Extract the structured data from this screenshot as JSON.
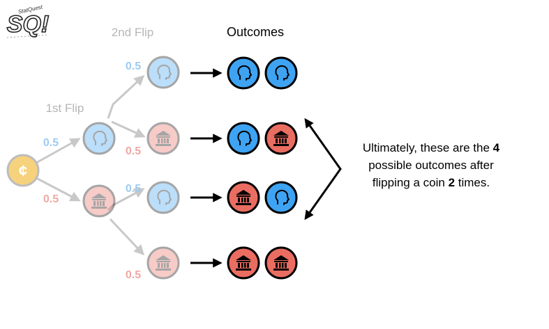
{
  "logo": {
    "text": "SQ!",
    "tagline": "StatQuest"
  },
  "labels": {
    "first_flip": "1st Flip",
    "second_flip": "2nd Flip",
    "outcomes": "Outcomes"
  },
  "probabilities": {
    "first_heads": "0.5",
    "first_tails": "0.5",
    "second_heads_after_heads": "0.5",
    "second_tails_after_heads": "0.5",
    "second_heads_after_tails": "0.5",
    "second_tails_after_tails": "0.5"
  },
  "start_coin": {
    "symbol": "¢"
  },
  "outcomes": [
    {
      "first": "heads",
      "second": "heads"
    },
    {
      "first": "heads",
      "second": "tails"
    },
    {
      "first": "tails",
      "second": "heads"
    },
    {
      "first": "tails",
      "second": "tails"
    }
  ],
  "note": {
    "line1_prefix": "Ultimately, these are the ",
    "line1_bold": "4",
    "line2": "possible outcomes after",
    "line3_prefix": "flipping a coin ",
    "line3_bold": "2",
    "line3_suffix": " times."
  },
  "colors": {
    "heads": "#3ea3f2",
    "tails": "#ea6d62",
    "heads_faded": "#d4e9fb",
    "tails_faded": "#fbe0de",
    "coin_start": "#f7d27c",
    "faded_line": "#c8c8c8",
    "faded_text": "#b6b6b6",
    "prob_blue": "#9ccbf3",
    "prob_red": "#f0a8a2",
    "text": "#000000"
  }
}
